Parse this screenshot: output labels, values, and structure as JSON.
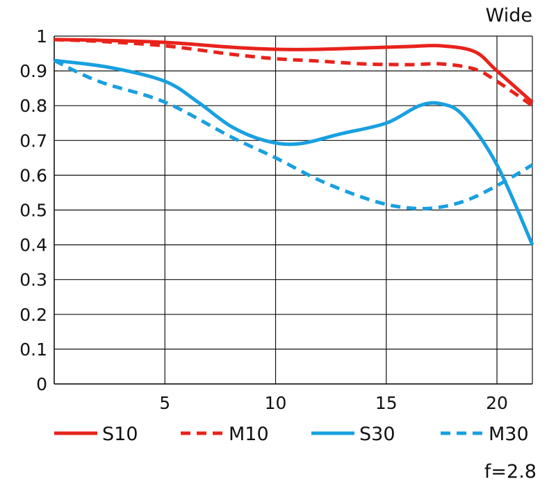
{
  "chart_data": {
    "type": "line",
    "title": "Wide",
    "footnote": "f=2.8",
    "xlabel": "",
    "ylabel": "",
    "xlim": [
      0,
      21.6
    ],
    "ylim": [
      0,
      1
    ],
    "xticks": [
      5,
      10,
      15,
      20
    ],
    "xtick_labels": [
      "5",
      "10",
      "15",
      "20"
    ],
    "yticks": [
      0,
      0.1,
      0.2,
      0.3,
      0.4,
      0.5,
      0.6,
      0.7,
      0.8,
      0.9,
      1
    ],
    "ytick_labels": [
      "0",
      "0.1",
      "0.2",
      "0.3",
      "0.4",
      "0.5",
      "0.6",
      "0.7",
      "0.8",
      "0.9",
      "1"
    ],
    "grid": true,
    "legend_position": "bottom",
    "series": [
      {
        "name": "S10",
        "color": "#e8231b",
        "dash": "solid",
        "x": [
          0,
          2,
          5,
          8,
          10,
          12,
          14,
          16,
          17.5,
          19,
          20,
          21.6
        ],
        "y": [
          0.99,
          0.988,
          0.982,
          0.968,
          0.962,
          0.962,
          0.966,
          0.97,
          0.972,
          0.955,
          0.9,
          0.81
        ]
      },
      {
        "name": "M10",
        "color": "#e8231b",
        "dash": "dashed",
        "x": [
          0,
          2,
          5,
          8,
          10,
          12,
          14,
          16,
          17.5,
          19,
          20,
          21.6
        ],
        "y": [
          0.99,
          0.985,
          0.972,
          0.948,
          0.935,
          0.928,
          0.92,
          0.918,
          0.92,
          0.905,
          0.87,
          0.8
        ]
      },
      {
        "name": "S30",
        "color": "#18a0e0",
        "dash": "solid",
        "x": [
          0,
          2.5,
          5,
          6.5,
          8,
          9.5,
          11,
          13,
          15,
          16.5,
          17.5,
          18.5,
          20,
          21.6
        ],
        "y": [
          0.93,
          0.91,
          0.87,
          0.81,
          0.74,
          0.7,
          0.69,
          0.72,
          0.75,
          0.8,
          0.805,
          0.77,
          0.63,
          0.4
        ]
      },
      {
        "name": "M30",
        "color": "#18a0e0",
        "dash": "dashed",
        "x": [
          0,
          2,
          5,
          8,
          10,
          12,
          14,
          15.5,
          17,
          18.5,
          20,
          21.6
        ],
        "y": [
          0.93,
          0.87,
          0.81,
          0.71,
          0.65,
          0.585,
          0.535,
          0.51,
          0.505,
          0.525,
          0.57,
          0.63
        ]
      }
    ]
  }
}
